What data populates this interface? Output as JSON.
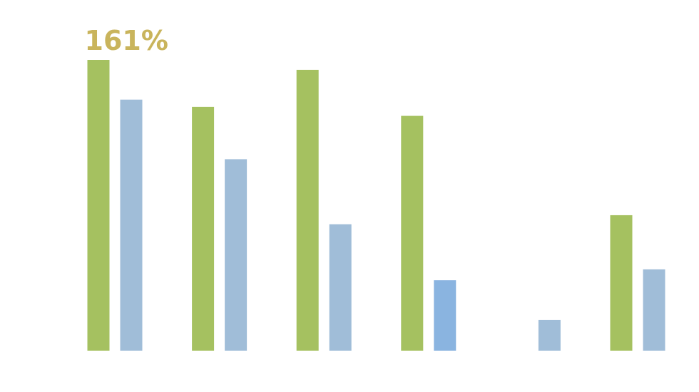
{
  "chart_data": {
    "type": "bar",
    "categories": [
      null,
      null,
      null,
      null,
      null,
      null
    ],
    "series": [
      {
        "color": "#a5c160",
        "values": [
          161,
          135,
          155.5,
          130,
          null,
          75
        ],
        "value_labels": [
          "161%",
          null,
          null,
          null,
          null,
          null
        ]
      },
      {
        "color": "#a0bdd8",
        "colors": [
          "#a0bdd8",
          "#a0bdd8",
          "#a0bdd8",
          "#8ab4e0",
          "#a0bdd8",
          "#a0bdd8"
        ],
        "values": [
          139,
          106,
          70,
          39,
          17,
          45
        ]
      }
    ],
    "label_color": "#c9b45c",
    "ylim": [
      0,
      161
    ]
  }
}
